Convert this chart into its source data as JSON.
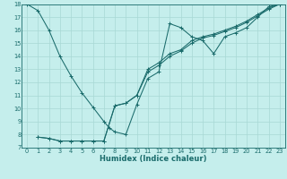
{
  "xlabel": "Humidex (Indice chaleur)",
  "bg_color": "#c5eeec",
  "line_color": "#1a6b6b",
  "grid_color": "#a8d8d5",
  "xlim": [
    -0.5,
    23.5
  ],
  "ylim": [
    7,
    18
  ],
  "xticks": [
    0,
    1,
    2,
    3,
    4,
    5,
    6,
    7,
    8,
    9,
    10,
    11,
    12,
    13,
    14,
    15,
    16,
    17,
    18,
    19,
    20,
    21,
    22,
    23
  ],
  "yticks": [
    7,
    8,
    9,
    10,
    11,
    12,
    13,
    14,
    15,
    16,
    17,
    18
  ],
  "line1_x": [
    0,
    1,
    2,
    3,
    4,
    5,
    6,
    7,
    7.5,
    8,
    9,
    10,
    11,
    12,
    13,
    14,
    15,
    16,
    17,
    18,
    19,
    20,
    21,
    22,
    23
  ],
  "line1_y": [
    18,
    17.5,
    16,
    14,
    12.5,
    11.2,
    10.1,
    9.0,
    8.5,
    8.2,
    8.0,
    10.3,
    12.3,
    12.8,
    16.5,
    16.2,
    15.5,
    15.2,
    14.2,
    15.5,
    15.8,
    16.2,
    17.0,
    17.8,
    18.0
  ],
  "line2_x": [
    1,
    2,
    3,
    4,
    5,
    6,
    7,
    8,
    9,
    10,
    11,
    12,
    13,
    14,
    15,
    16,
    17,
    18,
    19,
    20,
    21,
    22,
    23
  ],
  "line2_y": [
    7.8,
    7.7,
    7.5,
    7.5,
    7.5,
    7.5,
    7.5,
    10.2,
    10.4,
    11.0,
    13.0,
    13.5,
    14.2,
    14.5,
    15.2,
    15.5,
    15.7,
    16.0,
    16.3,
    16.7,
    17.2,
    17.7,
    18.0
  ],
  "line3_x": [
    1,
    2,
    3,
    4,
    5,
    6,
    7,
    8,
    9,
    10,
    11,
    12,
    13,
    14,
    15,
    16,
    17,
    18,
    19,
    20,
    21,
    22,
    23
  ],
  "line3_y": [
    7.8,
    7.7,
    7.5,
    7.5,
    7.5,
    7.5,
    7.5,
    10.2,
    10.4,
    11.0,
    12.8,
    13.3,
    14.0,
    14.4,
    15.0,
    15.4,
    15.6,
    15.9,
    16.2,
    16.6,
    17.1,
    17.6,
    18.0
  ]
}
